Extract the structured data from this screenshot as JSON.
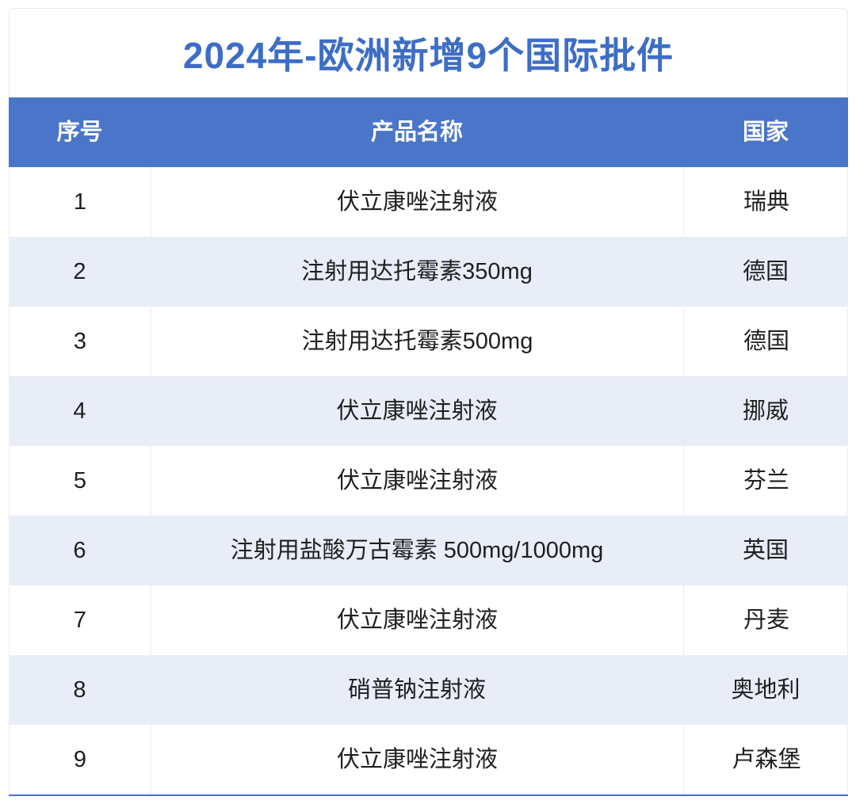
{
  "chart_data": {
    "type": "table",
    "title": "2024年-欧洲新增9个国际批件",
    "columns": [
      "序号",
      "产品名称",
      "国家"
    ],
    "rows": [
      [
        "1",
        "伏立康唑注射液",
        "瑞典"
      ],
      [
        "2",
        "注射用达托霉素350mg",
        "德国"
      ],
      [
        "3",
        "注射用达托霉素500mg",
        "德国"
      ],
      [
        "4",
        "伏立康唑注射液",
        "挪威"
      ],
      [
        "5",
        "伏立康唑注射液",
        "芬兰"
      ],
      [
        "6",
        "注射用盐酸万古霉素 500mg/1000mg",
        "英国"
      ],
      [
        "7",
        "伏立康唑注射液",
        "丹麦"
      ],
      [
        "8",
        "硝普钠注射液",
        "奥地利"
      ],
      [
        "9",
        "伏立康唑注射液",
        "卢森堡"
      ]
    ],
    "layout": {
      "row_striping": "alternating white and light lavender",
      "header_position": "top",
      "alignment": "center"
    }
  },
  "colors": {
    "title_text": "#3d6dc5",
    "header_bg": "#4a75c9",
    "header_text": "#ffffff",
    "row_alt_bg": "#e9edf8",
    "body_text": "#1f1f1f",
    "divider": "#ededed",
    "bottom_border": "#4472c4"
  }
}
